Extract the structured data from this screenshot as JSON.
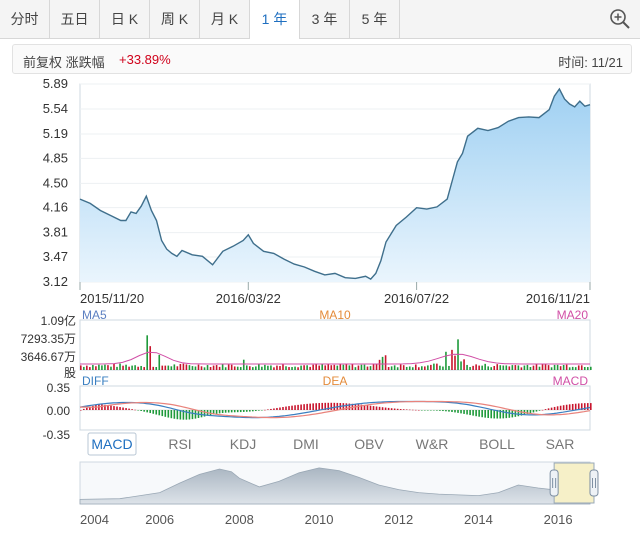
{
  "tabs": [
    {
      "label": "分时",
      "active": false
    },
    {
      "label": "五日",
      "active": false
    },
    {
      "label": "日 K",
      "active": false
    },
    {
      "label": "周 K",
      "active": false
    },
    {
      "label": "月 K",
      "active": false
    },
    {
      "label": "1 年",
      "active": true
    },
    {
      "label": "3 年",
      "active": false
    },
    {
      "label": "5 年",
      "active": false
    }
  ],
  "zoom_icon": "zoom-in-icon",
  "info": {
    "label": "前复权 涨跌幅",
    "change": "+33.89%",
    "time": "时间: 11/21"
  },
  "colors": {
    "price_line": "#3f6f8c",
    "price_fill_top": "#9fd0f2",
    "price_fill_bottom": "#eaf5fd",
    "up": "#c8152d",
    "down": "#1e9a3a",
    "ma5": "#5b7fc1",
    "ma10": "#e48b3a",
    "ma20": "#d14fa6",
    "macd_dif": "#3a7fc1",
    "macd_dea": "#e9837c",
    "selected_tab_text": "#1f6fc0"
  },
  "chart_data": [
    {
      "type": "area",
      "ylim": [
        3.12,
        5.89
      ],
      "yticks": [
        "5.89",
        "5.54",
        "5.19",
        "4.85",
        "4.50",
        "4.16",
        "3.81",
        "3.47",
        "3.12"
      ],
      "xticks": [
        "2015/11/20",
        "2016/03/22",
        "2016/07/22",
        "2016/11/21"
      ],
      "x_tick_positions": [
        0.0,
        0.33,
        0.66,
        1.0
      ],
      "x": [
        0.0,
        0.02,
        0.04,
        0.06,
        0.08,
        0.09,
        0.1,
        0.11,
        0.12,
        0.13,
        0.14,
        0.15,
        0.16,
        0.17,
        0.18,
        0.19,
        0.2,
        0.22,
        0.24,
        0.26,
        0.28,
        0.3,
        0.32,
        0.33,
        0.34,
        0.36,
        0.38,
        0.4,
        0.42,
        0.44,
        0.46,
        0.48,
        0.5,
        0.52,
        0.54,
        0.56,
        0.57,
        0.58,
        0.59,
        0.6,
        0.62,
        0.64,
        0.66,
        0.68,
        0.7,
        0.72,
        0.73,
        0.74,
        0.75,
        0.76,
        0.78,
        0.8,
        0.82,
        0.84,
        0.86,
        0.88,
        0.9,
        0.92,
        0.93,
        0.94,
        0.95,
        0.96,
        0.97,
        0.98,
        0.99,
        1.0
      ],
      "values": [
        4.28,
        4.22,
        4.12,
        4.05,
        3.98,
        3.98,
        4.1,
        4.08,
        4.18,
        4.32,
        4.12,
        3.98,
        3.7,
        3.58,
        3.52,
        3.48,
        3.56,
        3.5,
        3.48,
        3.36,
        3.55,
        3.62,
        3.7,
        3.78,
        3.66,
        3.55,
        3.52,
        3.44,
        3.37,
        3.33,
        3.27,
        3.22,
        3.24,
        3.18,
        3.17,
        3.2,
        3.16,
        3.24,
        3.42,
        3.68,
        3.91,
        4.03,
        4.16,
        4.14,
        4.17,
        4.28,
        4.54,
        4.8,
        4.92,
        5.16,
        5.27,
        5.24,
        5.28,
        5.37,
        5.42,
        5.43,
        5.42,
        5.53,
        5.72,
        5.82,
        5.68,
        5.61,
        5.57,
        5.65,
        5.58,
        5.6
      ]
    },
    {
      "type": "bar",
      "title": "volume",
      "yticks": [
        "1.09亿",
        "7293.35万",
        "3646.67万"
      ],
      "unit": "股",
      "legend": [
        "MA5",
        "MA10",
        "MA20"
      ],
      "spikes": [
        {
          "x": 0.13,
          "v": 1.0
        },
        {
          "x": 0.14,
          "v": 0.6
        },
        {
          "x": 0.15,
          "v": 0.35
        },
        {
          "x": 0.32,
          "v": 0.25
        },
        {
          "x": 0.58,
          "v": 0.2
        },
        {
          "x": 0.59,
          "v": 0.32
        },
        {
          "x": 0.6,
          "v": 0.35
        },
        {
          "x": 0.72,
          "v": 0.42
        },
        {
          "x": 0.73,
          "v": 0.5
        },
        {
          "x": 0.74,
          "v": 0.95
        },
        {
          "x": 0.75,
          "v": 0.3
        }
      ]
    },
    {
      "type": "line",
      "title": "MACD",
      "yticks": [
        "0.35",
        "0.00",
        "-0.35"
      ],
      "legend": [
        "DIFF",
        "DEA",
        "MACD"
      ],
      "ylim": [
        -0.35,
        0.35
      ]
    },
    {
      "type": "area",
      "title": "overview",
      "xticks": [
        "2004",
        "2006",
        "2008",
        "2010",
        "2012",
        "2014",
        "2016"
      ],
      "x": [
        2004,
        2005,
        2006,
        2006.5,
        2007,
        2007.5,
        2007.8,
        2008,
        2008.5,
        2009,
        2009.5,
        2010,
        2010.5,
        2011,
        2011.5,
        2012,
        2012.5,
        2013,
        2013.5,
        2014,
        2014.5,
        2015,
        2015.5,
        2016,
        2016.8
      ],
      "values": [
        0.12,
        0.14,
        0.3,
        0.55,
        0.78,
        0.92,
        0.85,
        0.68,
        0.45,
        0.6,
        0.82,
        0.95,
        0.88,
        0.7,
        0.5,
        0.38,
        0.3,
        0.26,
        0.24,
        0.22,
        0.3,
        0.5,
        0.42,
        0.36,
        0.4
      ]
    }
  ],
  "indicator_tabs": [
    {
      "label": "MACD",
      "active": true
    },
    {
      "label": "RSI",
      "active": false
    },
    {
      "label": "KDJ",
      "active": false
    },
    {
      "label": "DMI",
      "active": false
    },
    {
      "label": "OBV",
      "active": false
    },
    {
      "label": "W&R",
      "active": false
    },
    {
      "label": "BOLL",
      "active": false
    },
    {
      "label": "SAR",
      "active": false
    }
  ],
  "range_selector": {
    "start_year": 2015.9,
    "end_year": 2016.9
  }
}
